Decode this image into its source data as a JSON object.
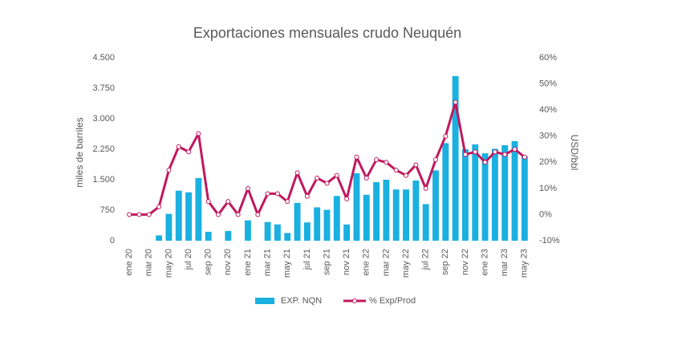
{
  "chart_data": {
    "type": "bar_line",
    "title": "Exportaciones mensuales crudo Neuquén",
    "y_label": "miles de barriles",
    "y2_label": "USD/bbl",
    "categories": [
      "ene 20",
      null,
      "mar 20",
      null,
      "may 20",
      null,
      "jul 20",
      null,
      "sep 20",
      null,
      "nov 20",
      null,
      "ene 21",
      null,
      "mar 21",
      null,
      "may 21",
      null,
      "jul 21",
      null,
      "sep 21",
      null,
      "nov 21",
      null,
      "ene 22",
      null,
      "mar 22",
      null,
      "may 22",
      null,
      "jul 22",
      null,
      "sep 22",
      null,
      "nov 22",
      null,
      "ene 23",
      null,
      "mar 23",
      null,
      "may 23"
    ],
    "series": [
      {
        "name": "EXP. NQN",
        "color": "#1ab0e0",
        "kind": "bar",
        "values": [
          0,
          0,
          0,
          130,
          660,
          1230,
          1190,
          1540,
          220,
          0,
          240,
          0,
          500,
          0,
          460,
          400,
          190,
          930,
          450,
          820,
          760,
          1100,
          400,
          1660,
          1130,
          1440,
          1500,
          1260,
          1260,
          1480,
          900,
          1730,
          2400,
          4050,
          2250,
          2370,
          2150,
          2260,
          2350,
          2450,
          2080
        ]
      },
      {
        "name": "% Exp/Prod",
        "color": "#c0185e",
        "kind": "line",
        "axis": "y2",
        "values": [
          0,
          0,
          0,
          3,
          17,
          26,
          24,
          31,
          5,
          0,
          5,
          0,
          10,
          0,
          8,
          8,
          5,
          16,
          7,
          14,
          12,
          15,
          6,
          22,
          14,
          21,
          20,
          17,
          15,
          19,
          10,
          21,
          30,
          43,
          23,
          24,
          20,
          24,
          23,
          25,
          22
        ]
      }
    ],
    "ylim": [
      0,
      4500
    ],
    "yticks": [
      0,
      750,
      {
        "value": 1500,
        "label": "1.500"
      },
      {
        "value": 2250,
        "label": "2.250"
      },
      {
        "value": 3000,
        "label": "3.000"
      },
      {
        "value": 3750,
        "label": "3.750"
      },
      {
        "value": 4500,
        "label": "4.500"
      }
    ],
    "y2lim": [
      -10,
      60
    ],
    "y2ticks": [
      {
        "value": -10,
        "label": "-10%"
      },
      {
        "value": 0,
        "label": "0%"
      },
      {
        "value": 10,
        "label": "10%"
      },
      {
        "value": 20,
        "label": "20%"
      },
      {
        "value": 30,
        "label": "30%"
      },
      {
        "value": 40,
        "label": "40%"
      },
      {
        "value": 50,
        "label": "50%"
      },
      {
        "value": 60,
        "label": "60%"
      }
    ],
    "grid": false,
    "legend": "bottom"
  }
}
